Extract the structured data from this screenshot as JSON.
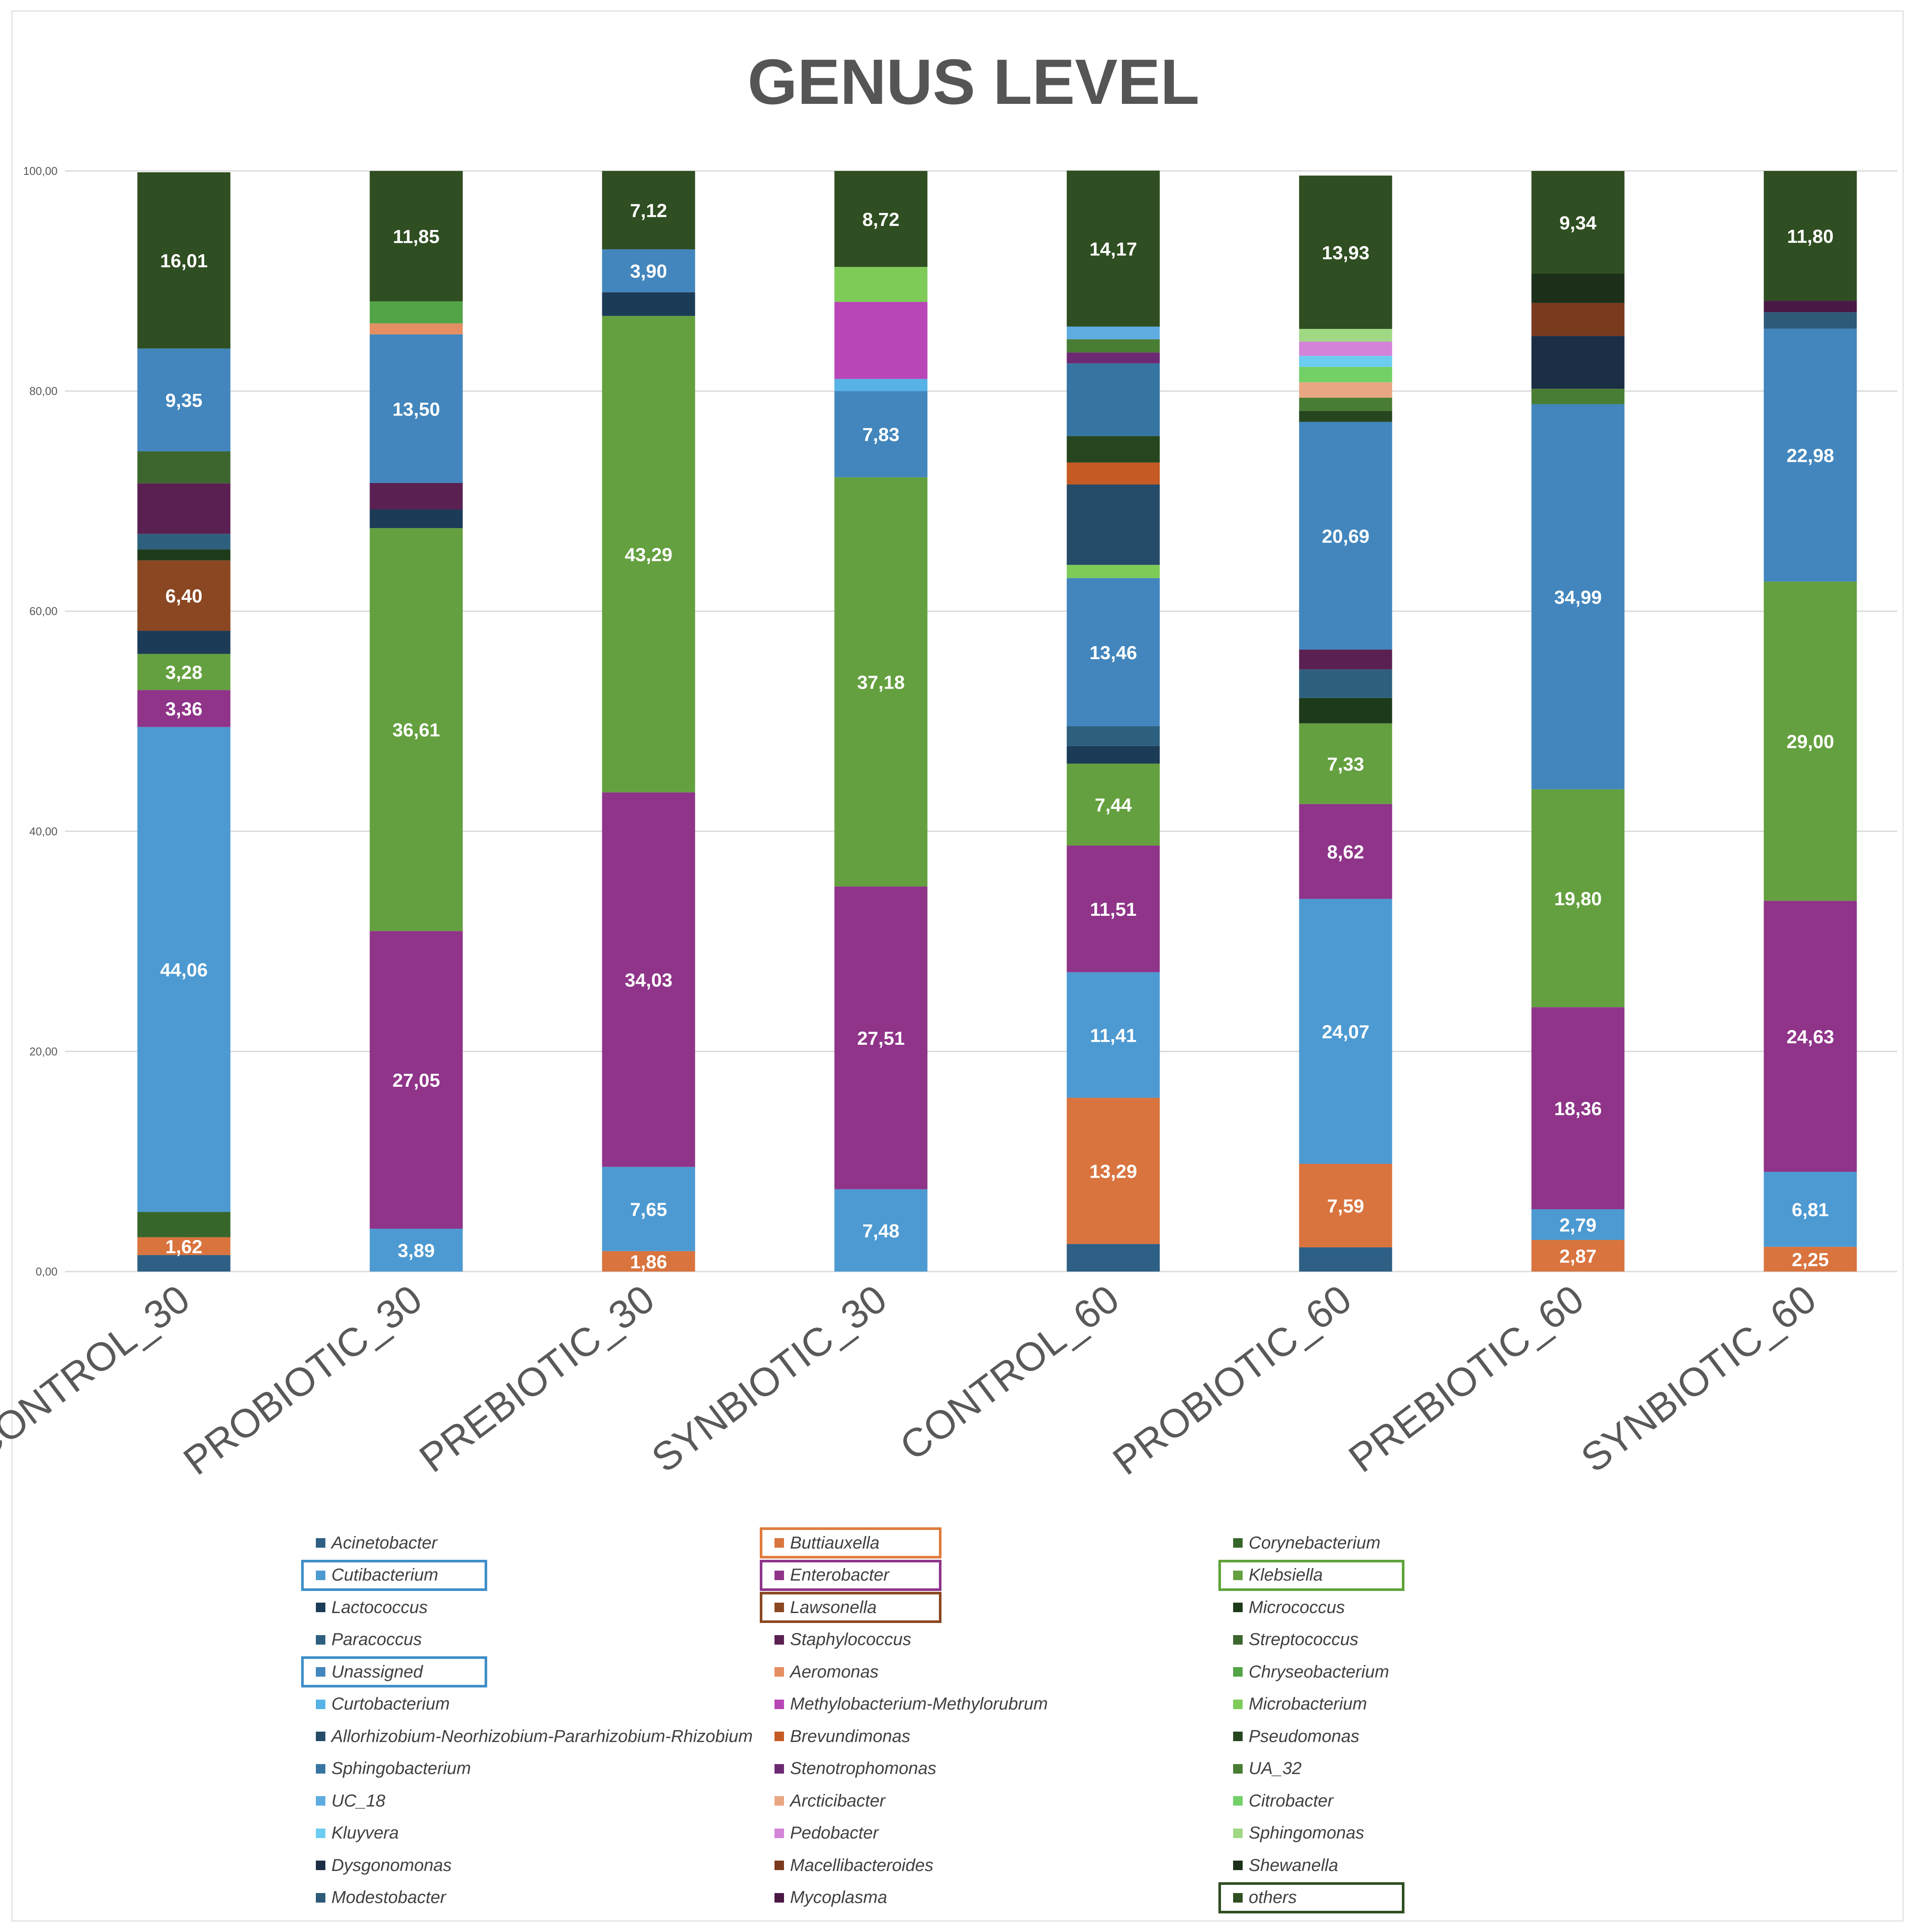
{
  "chart_data": {
    "type": "bar",
    "stacked": true,
    "title": "GENUS LEVEL",
    "ylim": [
      0,
      100
    ],
    "yticks": [
      "0,00",
      "20,00",
      "40,00",
      "60,00",
      "80,00",
      "100,00"
    ],
    "categories": [
      "CONTROL_30",
      "PROBIOTIC_30",
      "PREBIOTIC_30",
      "SYNBIOTIC_30",
      "CONTROL_60",
      "PROBIOTIC_60",
      "PREBIOTIC_60",
      "SYNBIOTIC_60"
    ],
    "bars": [
      {
        "category": "CONTROL_30",
        "segments": [
          {
            "genus": "Acinetobacter",
            "value": 1.5,
            "color": "#2e5f84"
          },
          {
            "genus": "Buttiauxella",
            "value": 1.62,
            "label": "1,62",
            "color": "#d9743f"
          },
          {
            "genus": "Corynebacterium",
            "value": 2.3,
            "color": "#37662b"
          },
          {
            "genus": "Cutibacterium",
            "value": 44.06,
            "label": "44,06",
            "color": "#4d9ad2"
          },
          {
            "genus": "Enterobacter",
            "value": 3.36,
            "label": "3,36",
            "color": "#8f3489"
          },
          {
            "genus": "Klebsiella",
            "value": 3.28,
            "label": "3,28",
            "color": "#64a03f"
          },
          {
            "genus": "Lactococcus",
            "value": 2.1,
            "color": "#1c3b57"
          },
          {
            "genus": "Lawsonella",
            "value": 6.4,
            "label": "6,40",
            "color": "#8b4721"
          },
          {
            "genus": "Micrococcus",
            "value": 1.0,
            "color": "#1d3b1a"
          },
          {
            "genus": "Paracoccus",
            "value": 1.4,
            "color": "#2d607e"
          },
          {
            "genus": "Staphylococcus",
            "value": 4.6,
            "color": "#5a2052"
          },
          {
            "genus": "Streptococcus",
            "value": 2.9,
            "color": "#3c662d"
          },
          {
            "genus": "Unassigned",
            "value": 9.35,
            "label": "9,35",
            "color": "#4286bd"
          },
          {
            "genus": "others",
            "value": 16.01,
            "label": "16,01",
            "color": "#2f4e21"
          }
        ]
      },
      {
        "category": "PROBIOTIC_30",
        "segments": [
          {
            "genus": "Cutibacterium",
            "value": 3.89,
            "label": "3,89",
            "color": "#4d9ad2"
          },
          {
            "genus": "Enterobacter",
            "value": 27.05,
            "label": "27,05",
            "color": "#8f3489"
          },
          {
            "genus": "Klebsiella",
            "value": 36.61,
            "label": "36,61",
            "color": "#64a03f"
          },
          {
            "genus": "Lactococcus",
            "value": 1.7,
            "color": "#1c3b57"
          },
          {
            "genus": "Staphylococcus",
            "value": 2.4,
            "color": "#5a2052"
          },
          {
            "genus": "Unassigned",
            "value": 13.5,
            "label": "13,50",
            "color": "#4286bd"
          },
          {
            "genus": "Aeromonas",
            "value": 1.0,
            "color": "#e48e62"
          },
          {
            "genus": "Chryseobacterium",
            "value": 2.0,
            "color": "#52a447"
          },
          {
            "genus": "others",
            "value": 11.85,
            "label": "11,85",
            "color": "#2f4e21"
          }
        ]
      },
      {
        "category": "PREBIOTIC_30",
        "segments": [
          {
            "genus": "Buttiauxella",
            "value": 1.86,
            "label": "1,86",
            "color": "#d9743f"
          },
          {
            "genus": "Cutibacterium",
            "value": 7.65,
            "label": "7,65",
            "color": "#4d9ad2"
          },
          {
            "genus": "Enterobacter",
            "value": 34.03,
            "label": "34,03",
            "color": "#8f3489"
          },
          {
            "genus": "Klebsiella",
            "value": 43.29,
            "label": "43,29",
            "color": "#64a03f"
          },
          {
            "genus": "Lactococcus",
            "value": 2.15,
            "color": "#1c3b57"
          },
          {
            "genus": "Unassigned",
            "value": 3.9,
            "label": "3,90",
            "color": "#4286bd"
          },
          {
            "genus": "others",
            "value": 7.12,
            "label": "7,12",
            "color": "#2f4e21"
          }
        ]
      },
      {
        "category": "SYNBIOTIC_30",
        "segments": [
          {
            "genus": "Cutibacterium",
            "value": 7.48,
            "label": "7,48",
            "color": "#4d9ad2"
          },
          {
            "genus": "Enterobacter",
            "value": 27.51,
            "label": "27,51",
            "color": "#8f3489"
          },
          {
            "genus": "Klebsiella",
            "value": 37.18,
            "label": "37,18",
            "color": "#64a03f"
          },
          {
            "genus": "Unassigned",
            "value": 7.83,
            "label": "7,83",
            "color": "#4286bd"
          },
          {
            "genus": "Curtobacterium",
            "value": 1.1,
            "color": "#57b2e6"
          },
          {
            "genus": "Methylobacterium-Methylorubrum",
            "value": 7.0,
            "color": "#b846b6"
          },
          {
            "genus": "Microbacterium",
            "value": 3.18,
            "color": "#7ecb58"
          },
          {
            "genus": "others",
            "value": 8.72,
            "label": "8,72",
            "color": "#2f4e21"
          }
        ]
      },
      {
        "category": "CONTROL_60",
        "segments": [
          {
            "genus": "Acinetobacter",
            "value": 2.5,
            "color": "#2e5f84"
          },
          {
            "genus": "Buttiauxella",
            "value": 13.29,
            "label": "13,29",
            "color": "#d9743f"
          },
          {
            "genus": "Cutibacterium",
            "value": 11.41,
            "label": "11,41",
            "color": "#4d9ad2"
          },
          {
            "genus": "Enterobacter",
            "value": 11.51,
            "label": "11,51",
            "color": "#8f3489"
          },
          {
            "genus": "Klebsiella",
            "value": 7.44,
            "label": "7,44",
            "color": "#64a03f"
          },
          {
            "genus": "Lactococcus",
            "value": 1.6,
            "color": "#1c3b57"
          },
          {
            "genus": "Paracoccus",
            "value": 1.8,
            "color": "#2d607e"
          },
          {
            "genus": "Unassigned",
            "value": 13.46,
            "label": "13,46",
            "color": "#4286bd"
          },
          {
            "genus": "Microbacterium",
            "value": 1.2,
            "color": "#7ecb58"
          },
          {
            "genus": "Allorhizobium-Neorhizobium-Pararhizobium-Rhizobium",
            "value": 7.3,
            "color": "#244b68"
          },
          {
            "genus": "Brevundimonas",
            "value": 2.0,
            "color": "#c55a24"
          },
          {
            "genus": "Pseudomonas",
            "value": 2.4,
            "color": "#25461f"
          },
          {
            "genus": "Sphingobacterium",
            "value": 6.6,
            "color": "#3675a1"
          },
          {
            "genus": "Stenotrophomonas",
            "value": 1.0,
            "color": "#6c2a72"
          },
          {
            "genus": "UA_32",
            "value": 1.2,
            "color": "#497d34"
          },
          {
            "genus": "UC_18",
            "value": 1.15,
            "color": "#5eace0"
          },
          {
            "genus": "others",
            "value": 14.17,
            "label": "14,17",
            "color": "#2f4e21"
          }
        ]
      },
      {
        "category": "PROBIOTIC_60",
        "segments": [
          {
            "genus": "Acinetobacter",
            "value": 2.2,
            "color": "#2e5f84"
          },
          {
            "genus": "Buttiauxella",
            "value": 7.59,
            "label": "7,59",
            "color": "#d9743f"
          },
          {
            "genus": "Cutibacterium",
            "value": 24.07,
            "label": "24,07",
            "color": "#4d9ad2"
          },
          {
            "genus": "Enterobacter",
            "value": 8.62,
            "label": "8,62",
            "color": "#8f3489"
          },
          {
            "genus": "Klebsiella",
            "value": 7.33,
            "label": "7,33",
            "color": "#64a03f"
          },
          {
            "genus": "Micrococcus",
            "value": 2.3,
            "color": "#1d3b1a"
          },
          {
            "genus": "Paracoccus",
            "value": 2.6,
            "color": "#2d607e"
          },
          {
            "genus": "Staphylococcus",
            "value": 1.8,
            "color": "#5a2052"
          },
          {
            "genus": "Unassigned",
            "value": 20.69,
            "label": "20,69",
            "color": "#4286bd"
          },
          {
            "genus": "Pseudomonas",
            "value": 1.0,
            "color": "#25461f"
          },
          {
            "genus": "UA_32",
            "value": 1.2,
            "color": "#497d34"
          },
          {
            "genus": "Arcticibacter",
            "value": 1.4,
            "color": "#e9a683"
          },
          {
            "genus": "Citrobacter",
            "value": 1.4,
            "color": "#72d067"
          },
          {
            "genus": "Kluyvera",
            "value": 1.0,
            "color": "#6dcdf0"
          },
          {
            "genus": "Pedobacter",
            "value": 1.3,
            "color": "#d383d8"
          },
          {
            "genus": "Sphingomonas",
            "value": 1.15,
            "color": "#a0d884"
          },
          {
            "genus": "others",
            "value": 13.93,
            "label": "13,93",
            "color": "#2f4e21"
          }
        ]
      },
      {
        "category": "PREBIOTIC_60",
        "segments": [
          {
            "genus": "Buttiauxella",
            "value": 2.87,
            "label": "2,87",
            "color": "#d9743f"
          },
          {
            "genus": "Cutibacterium",
            "value": 2.79,
            "label": "2,79",
            "color": "#4d9ad2"
          },
          {
            "genus": "Enterobacter",
            "value": 18.36,
            "label": "18,36",
            "color": "#8f3489"
          },
          {
            "genus": "Klebsiella",
            "value": 19.8,
            "label": "19,80",
            "color": "#64a03f"
          },
          {
            "genus": "Unassigned",
            "value": 34.99,
            "label": "34,99",
            "color": "#4286bd"
          },
          {
            "genus": "UA_32",
            "value": 1.4,
            "color": "#497d34"
          },
          {
            "genus": "Dysgonomonas",
            "value": 4.8,
            "color": "#1b2e45"
          },
          {
            "genus": "Macellibacteroides",
            "value": 3.0,
            "color": "#7a3a1e"
          },
          {
            "genus": "Shewanella",
            "value": 2.65,
            "color": "#1c3019"
          },
          {
            "genus": "others",
            "value": 9.34,
            "label": "9,34",
            "color": "#2f4e21"
          }
        ]
      },
      {
        "category": "SYNBIOTIC_60",
        "segments": [
          {
            "genus": "Buttiauxella",
            "value": 2.25,
            "label": "2,25",
            "color": "#d9743f"
          },
          {
            "genus": "Cutibacterium",
            "value": 6.81,
            "label": "6,81",
            "color": "#4d9ad2"
          },
          {
            "genus": "Enterobacter",
            "value": 24.63,
            "label": "24,63",
            "color": "#8f3489"
          },
          {
            "genus": "Klebsiella",
            "value": 29.0,
            "label": "29,00",
            "color": "#64a03f"
          },
          {
            "genus": "Unassigned",
            "value": 22.98,
            "label": "22,98",
            "color": "#4286bd"
          },
          {
            "genus": "Modestobacter",
            "value": 1.5,
            "color": "#2c5a78"
          },
          {
            "genus": "Mycoplasma",
            "value": 1.03,
            "color": "#4a1845"
          },
          {
            "genus": "others",
            "value": 11.8,
            "label": "11,80",
            "color": "#2f4e21"
          }
        ]
      }
    ],
    "legend": {
      "columns": [
        [
          {
            "name": "Acinetobacter",
            "color": "#2e5f84"
          },
          {
            "name": "Cutibacterium",
            "color": "#4d9ad2",
            "highlight": "#3f8ec8"
          },
          {
            "name": "Lactococcus",
            "color": "#1c3b57"
          },
          {
            "name": "Paracoccus",
            "color": "#2d607e"
          },
          {
            "name": "Unassigned",
            "color": "#4286bd",
            "highlight": "#3f8ec8"
          },
          {
            "name": "Curtobacterium",
            "color": "#57b2e6"
          },
          {
            "name": "Allorhizobium-Neorhizobium-Pararhizobium-Rhizobium",
            "color": "#244b68"
          },
          {
            "name": "Sphingobacterium",
            "color": "#3675a1"
          },
          {
            "name": "UC_18",
            "color": "#5eace0"
          },
          {
            "name": "Kluyvera",
            "color": "#6dcdf0"
          },
          {
            "name": "Dysgonomonas",
            "color": "#1b2e45"
          },
          {
            "name": "Modestobacter",
            "color": "#2c5a78"
          }
        ],
        [
          {
            "name": "Buttiauxella",
            "color": "#d9743f",
            "highlight": "#e07b3c"
          },
          {
            "name": "Enterobacter",
            "color": "#8f3489",
            "highlight": "#8f3489"
          },
          {
            "name": "Lawsonella",
            "color": "#8b4721",
            "highlight": "#8b4721"
          },
          {
            "name": "Staphylococcus",
            "color": "#5a2052"
          },
          {
            "name": "Aeromonas",
            "color": "#e48e62"
          },
          {
            "name": "Methylobacterium-Methylorubrum",
            "color": "#b846b6"
          },
          {
            "name": "Brevundimonas",
            "color": "#c55a24"
          },
          {
            "name": "Stenotrophomonas",
            "color": "#6c2a72"
          },
          {
            "name": "Arcticibacter",
            "color": "#e9a683"
          },
          {
            "name": "Pedobacter",
            "color": "#d383d8"
          },
          {
            "name": "Macellibacteroides",
            "color": "#7a3a1e"
          },
          {
            "name": "Mycoplasma",
            "color": "#4a1845"
          }
        ],
        [
          {
            "name": "Corynebacterium",
            "color": "#37662b"
          },
          {
            "name": "Klebsiella",
            "color": "#64a03f",
            "highlight": "#5ea33a"
          },
          {
            "name": "Micrococcus",
            "color": "#1d3b1a"
          },
          {
            "name": "Streptococcus",
            "color": "#3c662d"
          },
          {
            "name": "Chryseobacterium",
            "color": "#52a447"
          },
          {
            "name": "Microbacterium",
            "color": "#7ecb58"
          },
          {
            "name": "Pseudomonas",
            "color": "#25461f"
          },
          {
            "name": "UA_32",
            "color": "#497d34"
          },
          {
            "name": "Citrobacter",
            "color": "#72d067"
          },
          {
            "name": "Sphingomonas",
            "color": "#a0d884"
          },
          {
            "name": "Shewanella",
            "color": "#1c3019"
          },
          {
            "name": "others",
            "color": "#2f4e21",
            "highlight": "#2f4e21"
          }
        ]
      ]
    }
  }
}
